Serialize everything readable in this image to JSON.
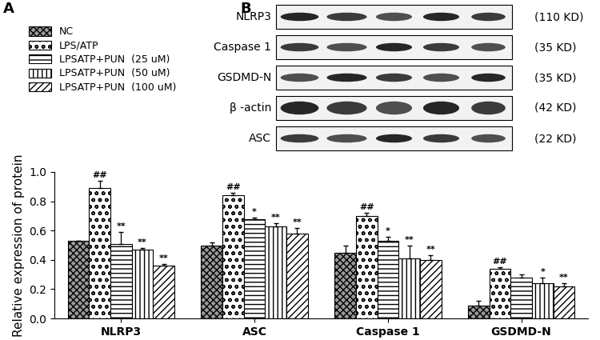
{
  "panel_labels": [
    "A",
    "B"
  ],
  "chart_data": {
    "type": "bar",
    "categories": [
      "NLRP3",
      "ASC",
      "Caspase 1",
      "GSDMD-N"
    ],
    "y_label": "Relative expression of protein",
    "ylim": [
      0.0,
      1.0
    ],
    "yticks": [
      0.0,
      0.2,
      0.4,
      0.6,
      0.8,
      1.0
    ],
    "legend": "upper left",
    "series": [
      {
        "name": "NC",
        "color": "#9a9a9a",
        "values": [
          0.53,
          0.5,
          0.45,
          0.09
        ],
        "errors": [
          0.0,
          0.02,
          0.05,
          0.03
        ],
        "significance": [
          null,
          null,
          null,
          null
        ]
      },
      {
        "name": "LPS/ATP",
        "color": "#ffffff",
        "values": [
          0.89,
          0.84,
          0.7,
          0.34
        ],
        "errors": [
          0.05,
          0.02,
          0.02,
          0.01
        ],
        "significance": [
          "##",
          "##",
          "##",
          "##"
        ]
      },
      {
        "name": "LPSATP+PUN  (25 uM)",
        "color": "#ffffff",
        "values": [
          0.51,
          0.68,
          0.53,
          0.28
        ],
        "errors": [
          0.08,
          0.01,
          0.03,
          0.02
        ],
        "significance": [
          "**",
          "*",
          "*",
          null
        ]
      },
      {
        "name": "LPSATP+PUN  (50 uM)",
        "color": "#ffffff",
        "values": [
          0.47,
          0.63,
          0.41,
          0.24
        ],
        "errors": [
          0.01,
          0.02,
          0.09,
          0.04
        ],
        "significance": [
          "**",
          "**",
          "**",
          "*"
        ]
      },
      {
        "name": "LPSATP+PUN  (100 uM)",
        "color": "#ffffff",
        "values": [
          0.36,
          0.58,
          0.4,
          0.22
        ],
        "errors": [
          0.01,
          0.04,
          0.03,
          0.02
        ],
        "significance": [
          "**",
          "**",
          "**",
          "**"
        ]
      }
    ]
  },
  "blot": {
    "rows": [
      {
        "label": "NLRP3",
        "size": "(110 KD)"
      },
      {
        "label": "Caspase 1",
        "size": "(35 KD)"
      },
      {
        "label": "GSDMD-N",
        "size": "(35 KD)"
      },
      {
        "label": "β -actin",
        "size": "(42 KD)"
      },
      {
        "label": "ASC",
        "size": "(22 KD)"
      }
    ]
  }
}
